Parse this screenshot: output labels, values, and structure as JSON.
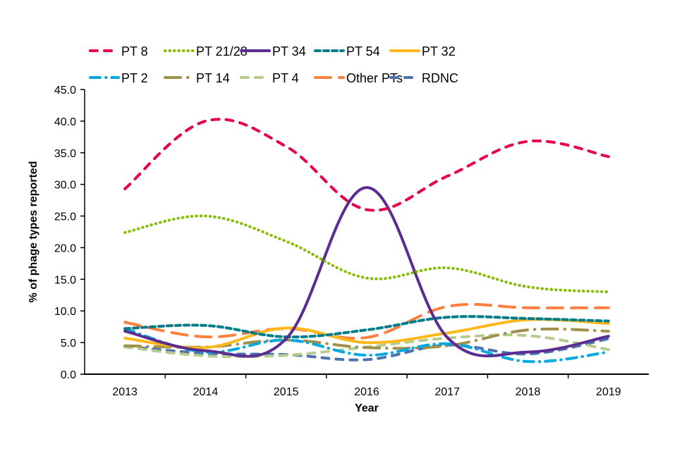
{
  "chart_data": {
    "type": "line",
    "title": "",
    "xlabel": "Year",
    "ylabel": "% of phage types reported",
    "ylim": [
      0,
      45
    ],
    "yticks": [
      "0.0",
      "5.0",
      "10.0",
      "15.0",
      "20.0",
      "25.0",
      "30.0",
      "35.0",
      "40.0",
      "45.0"
    ],
    "ytick_values": [
      0,
      5,
      10,
      15,
      20,
      25,
      30,
      35,
      40,
      45
    ],
    "grid": false,
    "legend_position": "top",
    "categories": [
      "2013",
      "2014",
      "2015",
      "2016",
      "2017",
      "2018",
      "2019"
    ],
    "series": [
      {
        "name": "PT 8",
        "color": "#E6004C",
        "style": "dash",
        "values": [
          29.3,
          40.0,
          36.0,
          26.0,
          31.3,
          36.8,
          34.4
        ]
      },
      {
        "name": "PT 21/28",
        "color": "#84BD00",
        "style": "dot",
        "values": [
          22.4,
          25.0,
          21.0,
          15.2,
          16.8,
          13.8,
          13.0
        ]
      },
      {
        "name": "PT 34",
        "color": "#5C2D91",
        "style": "solid",
        "values": [
          6.8,
          3.7,
          5.6,
          29.5,
          5.8,
          3.5,
          6.0
        ]
      },
      {
        "name": "PT 54",
        "color": "#007C8A",
        "style": "sysdash",
        "values": [
          7.2,
          7.7,
          5.9,
          7.0,
          9.0,
          8.8,
          8.4
        ]
      },
      {
        "name": "PT 32",
        "color": "#FFB81C",
        "style": "solid",
        "values": [
          5.7,
          4.2,
          7.3,
          5.0,
          6.5,
          8.6,
          8.0
        ]
      },
      {
        "name": "PT 2",
        "color": "#00A9E0",
        "style": "dashdot",
        "values": [
          7.2,
          3.5,
          5.4,
          3.0,
          4.8,
          2.0,
          3.5
        ]
      },
      {
        "name": "PT 14",
        "color": "#A0904A",
        "style": "longdashdot",
        "values": [
          4.5,
          4.3,
          5.4,
          4.2,
          4.5,
          7.0,
          6.8
        ]
      },
      {
        "name": "PT 4",
        "color": "#B5CC8E",
        "style": "dash",
        "values": [
          4.3,
          2.9,
          3.0,
          4.3,
          5.7,
          6.1,
          3.9
        ]
      },
      {
        "name": "Other PTs",
        "color": "#FF7F41",
        "style": "longdash",
        "values": [
          8.2,
          5.9,
          7.2,
          5.8,
          10.7,
          10.5,
          10.5
        ]
      },
      {
        "name": "RDNC",
        "color": "#4A72B0",
        "style": "dash",
        "values": [
          4.4,
          3.3,
          3.1,
          2.3,
          4.6,
          3.2,
          5.6
        ]
      }
    ]
  }
}
